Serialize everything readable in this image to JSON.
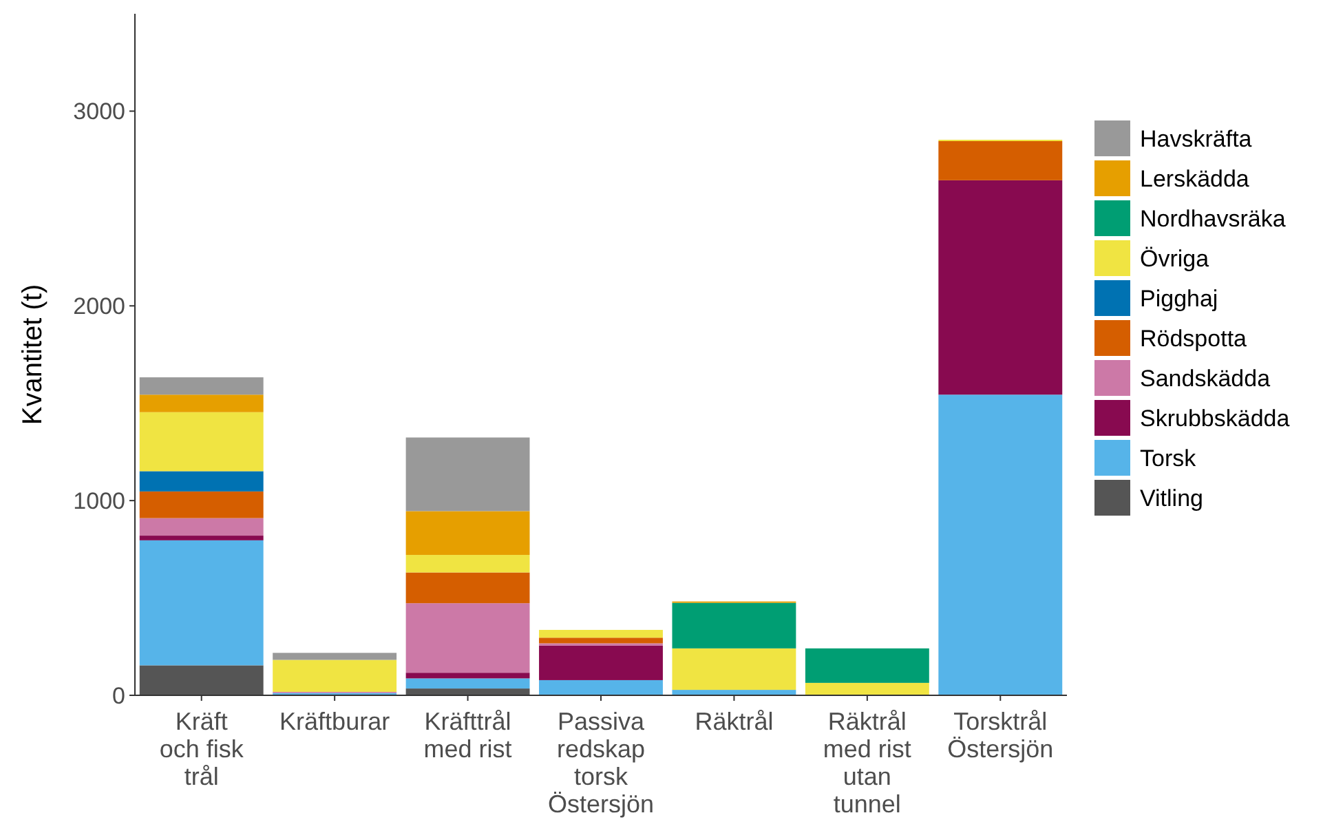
{
  "chart_data": {
    "type": "bar",
    "stacked": true,
    "ylabel": "Kvantitet (t)",
    "categories": [
      "Kräft\noch fisk\ntrål",
      "Kräftburar",
      "Kräfttrål\nmed rist",
      "Passiva\nredskap\ntorsk\nÖstersjön",
      "Räktrål",
      "Räktrål\nmed rist\nutan\ntunnel",
      "Torsktrål\nÖstersjön"
    ],
    "series": [
      {
        "name": "Vitling",
        "color": "#555555",
        "values": [
          154,
          0,
          35,
          0,
          0,
          0,
          0
        ]
      },
      {
        "name": "Torsk",
        "color": "#56b4e9",
        "values": [
          642,
          12,
          52,
          78,
          28,
          0,
          1544
        ]
      },
      {
        "name": "Skrubbskädda",
        "color": "#880a50",
        "values": [
          24,
          0,
          29,
          177,
          0,
          0,
          1101
        ]
      },
      {
        "name": "Sandskädda",
        "color": "#cc79a7",
        "values": [
          90,
          6,
          357,
          12,
          0,
          0,
          0
        ]
      },
      {
        "name": "Rödspotta",
        "color": "#d55e00",
        "values": [
          137,
          0,
          158,
          29,
          0,
          0,
          201
        ]
      },
      {
        "name": "Pigghaj",
        "color": "#0072b2",
        "values": [
          104,
          0,
          0,
          0,
          0,
          0,
          0
        ]
      },
      {
        "name": "Övriga",
        "color": "#f0e442",
        "values": [
          303,
          164,
          90,
          40,
          213,
          64,
          7
        ]
      },
      {
        "name": "Nordhavsräka",
        "color": "#009e73",
        "values": [
          0,
          0,
          0,
          0,
          234,
          177,
          0
        ]
      },
      {
        "name": "Lerskädda",
        "color": "#e69f00",
        "values": [
          90,
          0,
          225,
          0,
          7,
          0,
          0
        ]
      },
      {
        "name": "Havskräfta",
        "color": "#999999",
        "values": [
          89,
          36,
          378,
          0,
          0,
          0,
          0
        ]
      }
    ],
    "ylim": [
      0,
      3500
    ],
    "yticks": [
      0,
      1000,
      2000,
      3000
    ],
    "grid": false,
    "legend": "right"
  }
}
